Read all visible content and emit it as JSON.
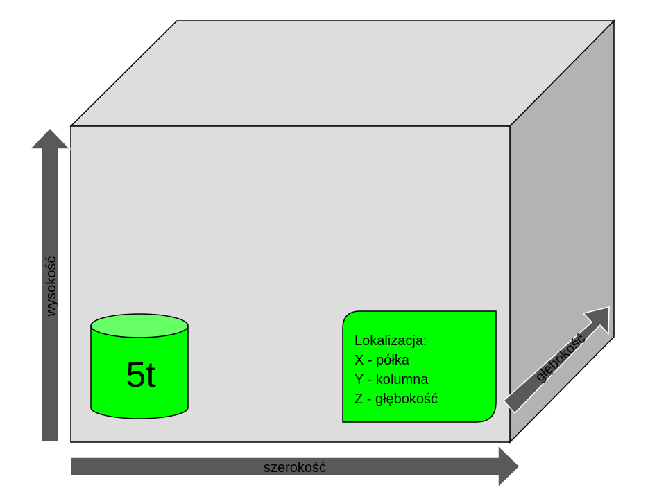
{
  "colors": {
    "box_front": "#dddddd",
    "box_top": "#dddddd",
    "box_side": "#b3b3b3",
    "outline": "#000000",
    "arrow": "#595959",
    "green_fill": "#00ff00",
    "green_top": "#66ff66"
  },
  "axes": {
    "height_label": "wysokość",
    "width_label": "szerokość",
    "depth_label": "głębokość"
  },
  "cylinder": {
    "label": "5t"
  },
  "location_note": {
    "line1": "Lokalizacja:",
    "line2": "X - półka",
    "line3": "Y - kolumna",
    "line4": "Z - głębokość"
  }
}
